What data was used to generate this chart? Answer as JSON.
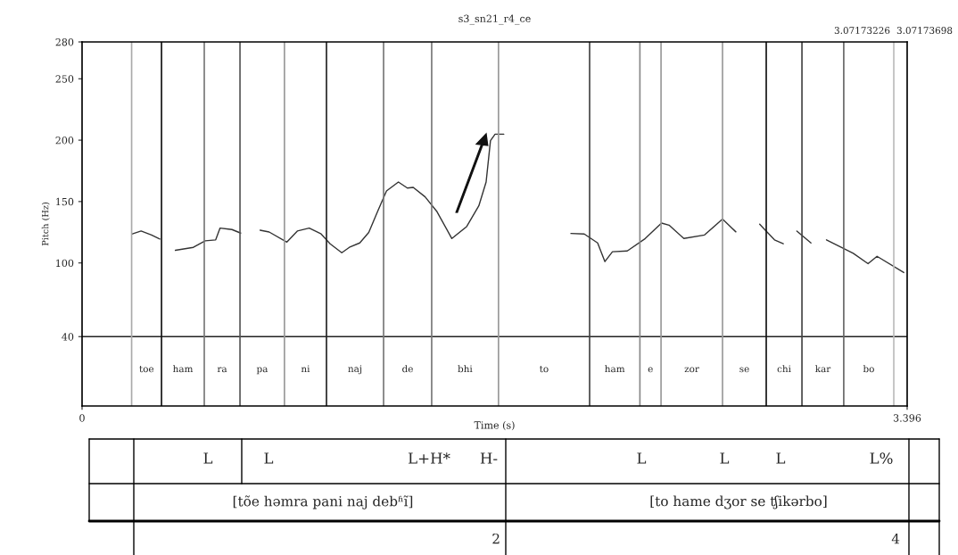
{
  "chart_data": {
    "type": "line",
    "title": "s3_sn21_r4_ce",
    "xlabel": "Time (s)",
    "ylabel": "Pitch (Hz)",
    "xlim": [
      0,
      3.396
    ],
    "xticks": [
      0,
      3.396
    ],
    "ylim": [
      -16.5,
      280
    ],
    "yticks": [
      40,
      100,
      150,
      200,
      250,
      280
    ],
    "grid": false,
    "legend": false,
    "marker": "none",
    "line_style": "solid",
    "series": [
      {
        "color": "#333333",
        "x": [
          0.207,
          0.243,
          0.286,
          0.32,
          0.35,
          0.384,
          0.458,
          0.507,
          0.55,
          0.568,
          0.617,
          0.653,
          0.69,
          0.733,
          0.77,
          0.843,
          0.886,
          0.935,
          0.984,
          1.021,
          1.069,
          1.1,
          1.143,
          1.18,
          1.216,
          1.253,
          1.302,
          1.339,
          1.363,
          1.412,
          1.461,
          1.522,
          1.583,
          1.633,
          1.663,
          1.681,
          1.7,
          1.736,
          1.9,
          2.012,
          2.067,
          2.122,
          2.152,
          2.183,
          2.244,
          2.318,
          2.385,
          2.416,
          2.477,
          2.562,
          2.636,
          2.691,
          2.74,
          2.789,
          2.85,
          2.886,
          2.91,
          2.942,
          3.0,
          3.03,
          3.064,
          3.174,
          3.235,
          3.272,
          3.382
        ],
        "values": [
          123.6,
          126,
          122.8,
          119.5,
          null,
          110.3,
          112.7,
          118,
          118.8,
          128.4,
          127.2,
          124.3,
          null,
          126.7,
          125.2,
          117,
          126,
          128.4,
          123.6,
          115.6,
          108.3,
          112.7,
          116.3,
          124.8,
          141.7,
          158.6,
          165.9,
          161,
          161.5,
          153.8,
          141.7,
          119.9,
          129.6,
          146.5,
          165.9,
          199.6,
          204.9,
          204.9,
          null,
          124,
          123.6,
          116.3,
          101.1,
          109.1,
          109.8,
          119.9,
          132.5,
          130.8,
          119.9,
          122.8,
          135.7,
          125.3,
          null,
          131.5,
          118.8,
          115.6,
          null,
          126,
          116.3,
          null,
          118.8,
          107.9,
          99.4,
          105.4,
          92.2
        ]
      }
    ],
    "ref_lines": [
      {
        "axis": "y",
        "value": 40,
        "color": "#222222"
      },
      {
        "axis": "x",
        "value": 0.204,
        "color": "#aaaaaa"
      },
      {
        "axis": "x",
        "value": 0.327,
        "color": "#111111"
      },
      {
        "axis": "x",
        "value": 0.503,
        "color": "#777777"
      },
      {
        "axis": "x",
        "value": 0.65,
        "color": "#555555"
      },
      {
        "axis": "x",
        "value": 0.833,
        "color": "#999999"
      },
      {
        "axis": "x",
        "value": 1.006,
        "color": "#222222"
      },
      {
        "axis": "x",
        "value": 1.241,
        "color": "#777777"
      },
      {
        "axis": "x",
        "value": 1.439,
        "color": "#777777"
      },
      {
        "axis": "x",
        "value": 1.714,
        "color": "#999999"
      },
      {
        "axis": "x",
        "value": 2.089,
        "color": "#444444"
      },
      {
        "axis": "x",
        "value": 2.296,
        "color": "#888888"
      },
      {
        "axis": "x",
        "value": 2.383,
        "color": "#999999"
      },
      {
        "axis": "x",
        "value": 2.636,
        "color": "#999999"
      },
      {
        "axis": "x",
        "value": 2.816,
        "color": "#111111"
      },
      {
        "axis": "x",
        "value": 2.963,
        "color": "#444444"
      },
      {
        "axis": "x",
        "value": 3.135,
        "color": "#666666"
      },
      {
        "axis": "x",
        "value": 3.341,
        "color": "#bbbbbb"
      }
    ],
    "annotations": [
      "toe",
      "ham",
      "ra",
      "pa",
      "ni",
      "naj",
      "de",
      "bhi",
      "to",
      "ham",
      "e",
      "zor",
      "se",
      "chi",
      "kar",
      "bo",
      "3.07173226",
      "3.07173698",
      "L",
      "L",
      "L+H*",
      "H-",
      "L",
      "L",
      "L",
      "L%",
      "[tõe həmra pani naj debʱĩ]",
      "[to hame dʒor se ʧikərbo]",
      "2",
      "4"
    ]
  }
}
